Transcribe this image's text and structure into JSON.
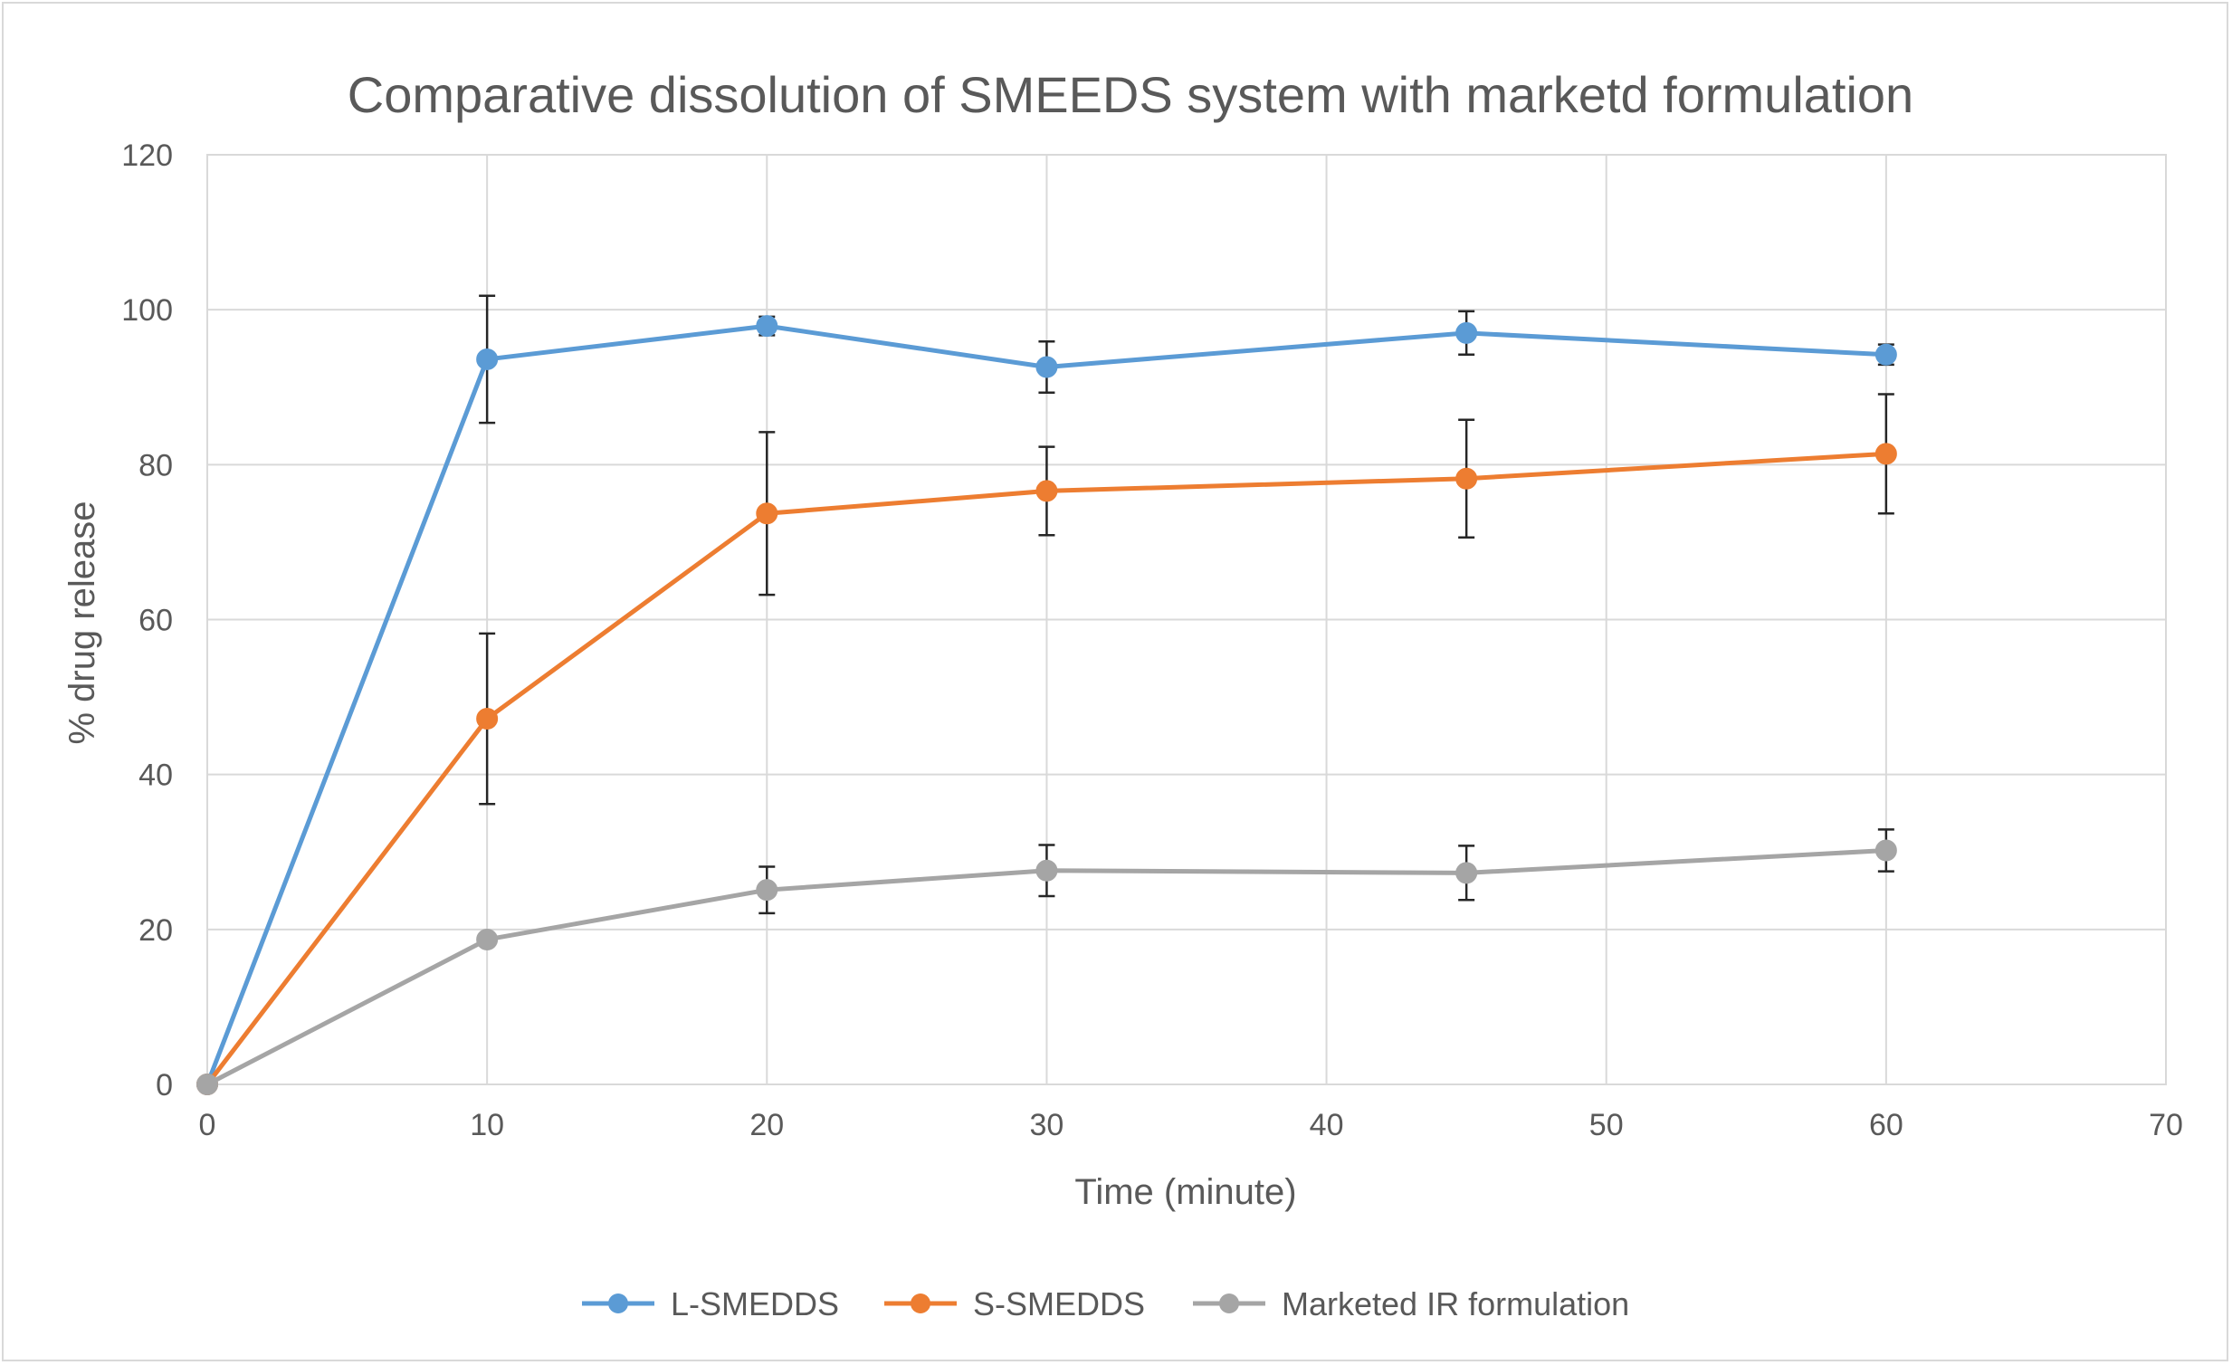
{
  "chart_data": {
    "type": "line",
    "title": "Comparative dissolution of SMEEDS system with marketd formulation",
    "xlabel": "Time (minute)",
    "ylabel": "% drug release",
    "xlim": [
      0,
      70
    ],
    "ylim": [
      0,
      120
    ],
    "x_ticks": [
      0,
      10,
      20,
      30,
      40,
      50,
      60,
      70
    ],
    "y_ticks": [
      0,
      20,
      40,
      60,
      80,
      100,
      120
    ],
    "grid": true,
    "legend_position": "bottom",
    "series": [
      {
        "name": "L-SMEDDS",
        "color": "#5b9bd5",
        "x": [
          0,
          10,
          20,
          30,
          45,
          60
        ],
        "values": [
          0,
          93.6,
          97.9,
          92.6,
          97.0,
          94.2
        ],
        "error": [
          0,
          8.2,
          1.2,
          3.3,
          2.8,
          1.3
        ]
      },
      {
        "name": "S-SMEDDS",
        "color": "#ed7d31",
        "x": [
          0,
          10,
          20,
          30,
          45,
          60
        ],
        "values": [
          0,
          47.2,
          73.7,
          76.6,
          78.2,
          81.4
        ],
        "error": [
          0,
          11.0,
          10.5,
          5.7,
          7.6,
          7.7
        ]
      },
      {
        "name": "Marketed IR formulation",
        "color": "#a5a5a5",
        "x": [
          0,
          10,
          20,
          30,
          45,
          60
        ],
        "values": [
          0,
          18.7,
          25.1,
          27.6,
          27.3,
          30.2
        ],
        "error": [
          0,
          0,
          3.0,
          3.3,
          3.5,
          2.7
        ]
      }
    ]
  }
}
